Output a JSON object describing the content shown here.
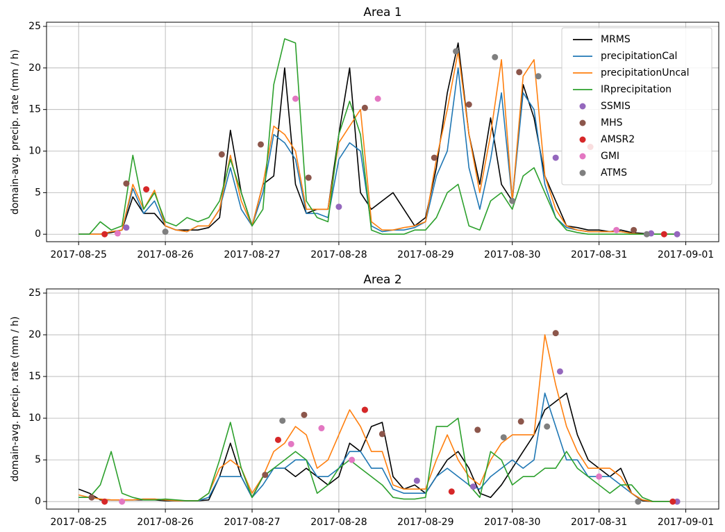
{
  "chart_data": [
    {
      "type": "line",
      "title": "Area 1",
      "y_label": "domain-avg. precip. rate (mm / h)",
      "xlim": [
        -0.37,
        7.38
      ],
      "ylim": [
        -0.9,
        25.5
      ],
      "xticks": [
        {
          "value": 0,
          "label": "2017-08-25"
        },
        {
          "value": 1,
          "label": "2017-08-26"
        },
        {
          "value": 2,
          "label": "2017-08-27"
        },
        {
          "value": 3,
          "label": "2017-08-28"
        },
        {
          "value": 4,
          "label": "2017-08-29"
        },
        {
          "value": 5,
          "label": "2017-08-30"
        },
        {
          "value": 6,
          "label": "2017-08-31"
        },
        {
          "value": 7,
          "label": "2017-09-01"
        }
      ],
      "yticks": [
        0,
        5,
        10,
        15,
        20,
        25
      ],
      "grid": true,
      "legend": "upper right",
      "x": [
        0,
        0.125,
        0.25,
        0.375,
        0.5,
        0.625,
        0.75,
        0.875,
        1,
        1.125,
        1.25,
        1.375,
        1.5,
        1.625,
        1.75,
        1.875,
        2,
        2.125,
        2.25,
        2.375,
        2.5,
        2.625,
        2.75,
        2.875,
        3,
        3.125,
        3.25,
        3.375,
        3.5,
        3.625,
        3.75,
        3.875,
        4,
        4.125,
        4.25,
        4.375,
        4.5,
        4.625,
        4.75,
        4.875,
        5,
        5.125,
        5.25,
        5.375,
        5.5,
        5.625,
        5.75,
        5.875,
        6,
        6.125,
        6.25,
        6.375,
        6.5,
        6.625,
        6.75,
        6.875
      ],
      "series": [
        {
          "name": "MRMS",
          "color": "#000000",
          "values": [
            0,
            0,
            0,
            0.2,
            0.5,
            4.5,
            2.5,
            2.5,
            1,
            0.5,
            0.5,
            0.5,
            0.8,
            2,
            12.5,
            5,
            1,
            6,
            7,
            20,
            6,
            2.5,
            3,
            3,
            12,
            20,
            5,
            3,
            4,
            5,
            3,
            1,
            2,
            8,
            17,
            23,
            12,
            6,
            14,
            6,
            4,
            18,
            14,
            7,
            4,
            1,
            0.8,
            0.5,
            0.5,
            0.3,
            0.5,
            0.2,
            0.1,
            0,
            0,
            0
          ]
        },
        {
          "name": "precipitationCal",
          "color": "#1f77b4",
          "values": [
            0,
            0,
            0,
            0.3,
            0.5,
            5.5,
            2.5,
            4,
            1,
            0.5,
            0.3,
            1,
            1,
            3,
            8,
            3,
            1,
            5,
            12,
            11,
            9,
            2.5,
            2.5,
            2,
            9,
            11,
            10,
            1,
            0.3,
            0.5,
            0.5,
            0.8,
            1.5,
            7,
            10,
            20,
            8,
            3,
            9,
            17,
            4,
            17,
            15,
            6,
            2,
            0.8,
            0.5,
            0.3,
            0.3,
            0.3,
            0.3,
            0.1,
            0,
            0,
            0,
            0
          ]
        },
        {
          "name": "precipitationUncal",
          "color": "#ff7f0e",
          "values": [
            0,
            0,
            0,
            0.3,
            0.5,
            6,
            3,
            5.3,
            1,
            0.5,
            0.3,
            1,
            1,
            3,
            9.5,
            4,
            1,
            6,
            13,
            12,
            10,
            3,
            3,
            3,
            11,
            13,
            15,
            1.5,
            0.5,
            0.5,
            0.8,
            1,
            1.5,
            9,
            15,
            22,
            12,
            5,
            12,
            21,
            4,
            19,
            21,
            7,
            3,
            1,
            0.5,
            0.3,
            0.3,
            0.3,
            0.3,
            0.1,
            0,
            0,
            0,
            0
          ]
        },
        {
          "name": "IRprecipitation",
          "color": "#2ca02c",
          "values": [
            0,
            0,
            1.5,
            0.5,
            1,
            9.5,
            3,
            5,
            1.5,
            1,
            2,
            1.5,
            2,
            4,
            9,
            5,
            1,
            3,
            18,
            23.5,
            23,
            4,
            2,
            1.5,
            12,
            16,
            12,
            0.5,
            0,
            0,
            0,
            0.5,
            0.5,
            2,
            5,
            6,
            1,
            0.5,
            4,
            5,
            3,
            7,
            8,
            5,
            2,
            0.5,
            0.2,
            0,
            0,
            0,
            0,
            0,
            0,
            0,
            0,
            0
          ]
        },
        {
          "name": "SSMIS",
          "color": "#9467bd",
          "type": "scatter",
          "x": [
            0.55,
            3.0,
            5.5,
            6.6,
            6.9
          ],
          "values": [
            0.8,
            3.3,
            9.2,
            0.1,
            0
          ]
        },
        {
          "name": "MHS",
          "color": "#8c564b",
          "type": "scatter",
          "x": [
            0.55,
            1.65,
            2.1,
            2.65,
            3.3,
            4.1,
            4.5,
            5.08,
            6.4
          ],
          "values": [
            6.1,
            9.6,
            10.8,
            6.8,
            15.2,
            9.2,
            15.6,
            19.5,
            0.5
          ]
        },
        {
          "name": "AMSR2",
          "color": "#d62728",
          "type": "scatter",
          "x": [
            0.3,
            0.78,
            5.9,
            6.75
          ],
          "values": [
            0,
            5.4,
            10.5,
            0
          ]
        },
        {
          "name": "GMI",
          "color": "#e377c2",
          "type": "scatter",
          "x": [
            0.45,
            2.5,
            3.45,
            6.2
          ],
          "values": [
            0.1,
            16.3,
            16.3,
            0.5
          ]
        },
        {
          "name": "ATMS",
          "color": "#7f7f7f",
          "type": "scatter",
          "x": [
            1.0,
            4.35,
            4.8,
            5.0,
            5.3,
            6.55
          ],
          "values": [
            0.3,
            22,
            21.3,
            4,
            19,
            0
          ]
        }
      ]
    },
    {
      "type": "line",
      "title": "Area 2",
      "y_label": "domain-avg. precip. rate (mm / h)",
      "xlim": [
        -0.37,
        7.38
      ],
      "ylim": [
        -0.9,
        25.5
      ],
      "xticks": [
        {
          "value": 0,
          "label": "2017-08-25"
        },
        {
          "value": 1,
          "label": "2017-08-26"
        },
        {
          "value": 2,
          "label": "2017-08-27"
        },
        {
          "value": 3,
          "label": "2017-08-28"
        },
        {
          "value": 4,
          "label": "2017-08-29"
        },
        {
          "value": 5,
          "label": "2017-08-30"
        },
        {
          "value": 6,
          "label": "2017-08-31"
        },
        {
          "value": 7,
          "label": "2017-09-01"
        }
      ],
      "yticks": [
        0,
        5,
        10,
        15,
        20,
        25
      ],
      "grid": true,
      "x": [
        0,
        0.125,
        0.25,
        0.375,
        0.5,
        0.625,
        0.75,
        0.875,
        1,
        1.125,
        1.25,
        1.375,
        1.5,
        1.625,
        1.75,
        1.875,
        2,
        2.125,
        2.25,
        2.375,
        2.5,
        2.625,
        2.75,
        2.875,
        3,
        3.125,
        3.25,
        3.375,
        3.5,
        3.625,
        3.75,
        3.875,
        4,
        4.125,
        4.25,
        4.375,
        4.5,
        4.625,
        4.75,
        4.875,
        5,
        5.125,
        5.25,
        5.375,
        5.5,
        5.625,
        5.75,
        5.875,
        6,
        6.125,
        6.25,
        6.375,
        6.5,
        6.625,
        6.75,
        6.875
      ],
      "series": [
        {
          "color": "#000000",
          "values": [
            1.5,
            1,
            0.2,
            0.2,
            0.2,
            0.2,
            0.2,
            0.2,
            0.1,
            0.1,
            0.1,
            0.1,
            0.2,
            3,
            7,
            3,
            0.5,
            3,
            4,
            4,
            3,
            4,
            3,
            2,
            3,
            7,
            6,
            9,
            9.5,
            3,
            1.5,
            2,
            1,
            3,
            5,
            6,
            4,
            1,
            0.5,
            2,
            4,
            6,
            8,
            11,
            12,
            13,
            8,
            5,
            4,
            3,
            4,
            1,
            0.1,
            0,
            0,
            0
          ]
        },
        {
          "color": "#1f77b4",
          "values": [
            0.5,
            0.5,
            0.3,
            0.2,
            0.2,
            0.2,
            0.3,
            0.3,
            0.2,
            0.1,
            0.1,
            0.1,
            0.5,
            3,
            3,
            3,
            0.5,
            2,
            4,
            4,
            5,
            5,
            3,
            3,
            4,
            6,
            6,
            4,
            4,
            1.5,
            1,
            1,
            1,
            3,
            4,
            3,
            2,
            1.5,
            3,
            4,
            5,
            4,
            5,
            13,
            9,
            5,
            5,
            3,
            3,
            3,
            2,
            1,
            0.2,
            0,
            0,
            0
          ]
        },
        {
          "color": "#ff7f0e",
          "values": [
            0.8,
            0.5,
            0.3,
            0.2,
            0.2,
            0.2,
            0.3,
            0.3,
            0.2,
            0.1,
            0.1,
            0.1,
            1,
            4,
            5,
            4,
            1,
            3,
            6,
            7,
            9,
            8,
            4,
            5,
            8,
            11,
            9,
            6,
            6,
            2,
            1.5,
            1.5,
            1.5,
            5,
            8,
            5,
            3,
            2,
            5,
            7,
            8,
            8,
            8,
            20,
            14,
            9,
            6,
            4,
            4,
            4,
            3,
            1,
            0.2,
            0,
            0,
            0
          ]
        },
        {
          "color": "#2ca02c",
          "values": [
            0.5,
            0.5,
            2,
            6,
            1,
            0.5,
            0.2,
            0.2,
            0.3,
            0.2,
            0.1,
            0.1,
            1,
            5,
            9.5,
            4,
            0.5,
            3,
            4,
            5,
            6,
            5,
            1,
            2,
            4,
            5,
            4,
            3,
            2,
            0.5,
            0.3,
            0.3,
            0.5,
            9,
            9,
            10,
            2,
            0.5,
            6,
            5,
            2,
            3,
            3,
            4,
            4,
            6,
            4,
            3,
            2,
            1,
            2,
            2,
            0.5,
            0,
            0,
            0
          ]
        },
        {
          "color": "#9467bd",
          "type": "scatter",
          "x": [
            3.9,
            4.55,
            5.55,
            6.9
          ],
          "values": [
            2.5,
            1.8,
            15.6,
            0
          ]
        },
        {
          "color": "#8c564b",
          "type": "scatter",
          "x": [
            0.15,
            2.15,
            2.6,
            3.3,
            3.5,
            4.6,
            5.1,
            5.5
          ],
          "values": [
            0.5,
            3.2,
            10.4,
            11,
            8.1,
            8.6,
            9.6,
            20.2
          ]
        },
        {
          "color": "#d62728",
          "type": "scatter",
          "x": [
            0.3,
            2.3,
            3.3,
            4.3,
            6.85
          ],
          "values": [
            0,
            7.4,
            11,
            1.2,
            0
          ]
        },
        {
          "color": "#e377c2",
          "type": "scatter",
          "x": [
            0.5,
            2.45,
            2.8,
            3.15,
            6.0
          ],
          "values": [
            0,
            6.9,
            8.8,
            5,
            3
          ]
        },
        {
          "color": "#7f7f7f",
          "type": "scatter",
          "x": [
            2.35,
            4.9,
            5.4,
            6.45
          ],
          "values": [
            9.7,
            7.7,
            9,
            0
          ]
        }
      ]
    }
  ]
}
